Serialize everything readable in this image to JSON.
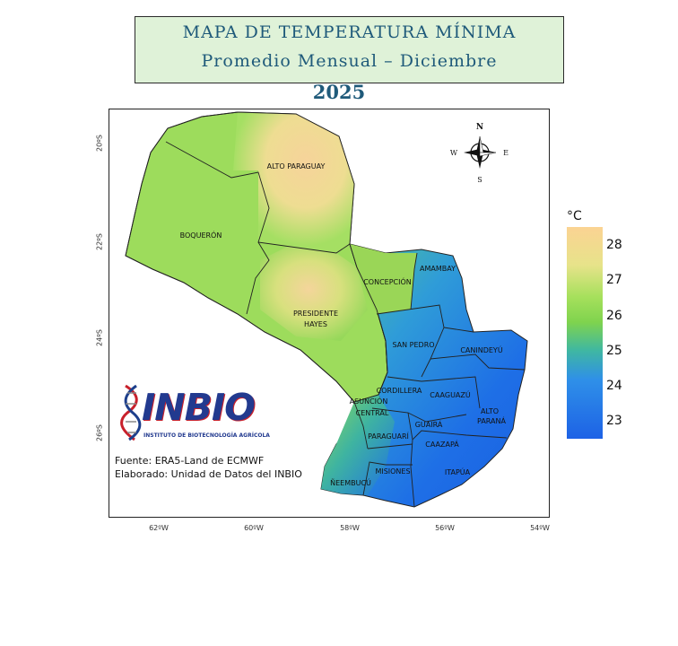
{
  "title": {
    "line1": "MAPA DE TEMPERATURA MÍNIMA",
    "line2": "Promedio Mensual – Diciembre",
    "year": "2025"
  },
  "colorbar": {
    "unit": "°C",
    "ticks": [
      "28",
      "27",
      "26",
      "25",
      "24",
      "23"
    ],
    "colors": [
      "#fbd393",
      "#e7e38a",
      "#a6e05c",
      "#7fd34e",
      "#40b8a0",
      "#2f90e8",
      "#1d62e6"
    ]
  },
  "axes": {
    "lat_ticks": [
      "20ºS",
      "22ºS",
      "24ºS",
      "26ºS"
    ],
    "lon_ticks": [
      "62ºW",
      "60ºW",
      "58ºW",
      "56ºW",
      "54ºW"
    ]
  },
  "compass": {
    "n": "N",
    "s": "S",
    "e": "E",
    "w": "W"
  },
  "departments": {
    "alto_paraguay": "ALTO PARAGUAY",
    "boqueron": "BOQUERÓN",
    "presidente_hayes_1": "PRESIDENTE",
    "presidente_hayes_2": "HAYES",
    "concepcion": "CONCEPCIÓN",
    "amambay": "AMAMBAY",
    "san_pedro": "SAN PEDRO",
    "canindeyu": "CANINDEYÚ",
    "cordillera": "CORDILLERA",
    "asuncion": "ASUNCIÓN",
    "central": "CENTRAL",
    "caaguazu": "CAAGUAZÚ",
    "alto_parana_1": "ALTO",
    "alto_parana_2": "PARANÁ",
    "guaira": "GUAIRÁ",
    "paraguari": "PARAGUARÍ",
    "caazapa": "CAAZAPÁ",
    "misiones": "MISIONES",
    "itapua": "ITAPÚA",
    "neembucu": "ÑEEMBUCÚ"
  },
  "logo": {
    "name": "INBIO",
    "subtitle": "INSTITUTO DE BIOTECNOLOGÍA AGRÍCOLA"
  },
  "credits": {
    "source": "Fuente: ERA5-Land de ECMWF",
    "author": "Elaborado: Unidad de Datos del INBIO"
  }
}
